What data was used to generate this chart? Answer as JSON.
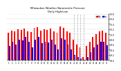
{
  "title": "Milwaukee Weather Barometric Pressure",
  "subtitle": "Daily High/Low",
  "legend_high": "High",
  "legend_low": "Low",
  "color_high": "#ff0000",
  "color_low": "#0000ff",
  "background_color": "#ffffff",
  "ylim": [
    29.0,
    30.8
  ],
  "ytick_labels": [
    "29.0",
    "29.2",
    "29.4",
    "29.6",
    "29.8",
    "30.0",
    "30.2",
    "30.4",
    "30.6",
    "30.8"
  ],
  "ytick_vals": [
    29.0,
    29.2,
    29.4,
    29.6,
    29.8,
    30.0,
    30.2,
    30.4,
    30.6,
    30.8
  ],
  "bar_width": 0.4,
  "dashed_line_color": "#aaaaaa",
  "dashed_indices": [
    20,
    21,
    22,
    23
  ],
  "highs": [
    30.05,
    30.15,
    30.1,
    30.2,
    30.18,
    30.22,
    30.12,
    30.08,
    30.25,
    30.28,
    30.15,
    30.2,
    30.18,
    30.22,
    30.1,
    30.05,
    30.3,
    30.25,
    30.1,
    30.05,
    29.8,
    29.6,
    29.5,
    29.1,
    29.55,
    29.7,
    29.9,
    30.0,
    30.1,
    30.15,
    30.05
  ],
  "lows": [
    29.55,
    29.7,
    29.6,
    29.8,
    29.75,
    29.9,
    29.7,
    29.5,
    29.8,
    29.9,
    29.65,
    29.72,
    29.68,
    29.8,
    29.6,
    29.4,
    29.85,
    29.78,
    29.6,
    29.4,
    29.2,
    29.1,
    29.05,
    29.0,
    29.1,
    29.3,
    29.5,
    29.6,
    29.7,
    29.72,
    29.58
  ],
  "xlabels": [
    "1",
    "2",
    "3",
    "4",
    "5",
    "6",
    "7",
    "8",
    "9",
    "10",
    "11",
    "12",
    "13",
    "14",
    "15",
    "16",
    "17",
    "18",
    "19",
    "20",
    "21",
    "22",
    "23",
    "24",
    "25",
    "26",
    "27",
    "28",
    "29",
    "30",
    "31"
  ]
}
